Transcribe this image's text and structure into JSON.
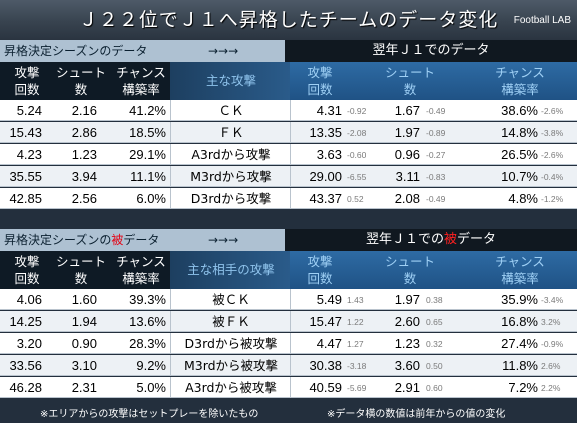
{
  "title": "Ｊ２２位でＪ１へ昇格したチームのデータ変化",
  "brand": "Football LAB",
  "sections": [
    {
      "left_label_pre": "昇格決定シーズンの",
      "left_label_hl": "",
      "left_label_post": "データ",
      "arrow": "→→→",
      "right_label_pre": "翌年Ｊ１での",
      "right_label_hl": "",
      "right_label_post": "データ",
      "headers": {
        "attack": [
          "攻撃",
          "回数"
        ],
        "shoot": [
          "シュート",
          "数"
        ],
        "chance": [
          "チャンス",
          "構築率"
        ],
        "main": "主な攻撃",
        "attack2": [
          "攻撃",
          "回数"
        ],
        "shoot2": [
          "シュート",
          "数"
        ],
        "chance2": [
          "チャンス",
          "構築率"
        ]
      },
      "rows": [
        {
          "a": "5.24",
          "s": "2.16",
          "c": "41.2%",
          "t": "ＣＫ",
          "a2": "4.31",
          "da": "-0.92",
          "s2": "1.67",
          "ds": "-0.49",
          "c2": "38.6%",
          "dc": "-2.6%"
        },
        {
          "a": "15.43",
          "s": "2.86",
          "c": "18.5%",
          "t": "ＦＫ",
          "a2": "13.35",
          "da": "-2.08",
          "s2": "1.97",
          "ds": "-0.89",
          "c2": "14.8%",
          "dc": "-3.8%"
        },
        {
          "a": "4.23",
          "s": "1.23",
          "c": "29.1%",
          "t": "A3rdから攻撃",
          "a2": "3.63",
          "da": "-0.60",
          "s2": "0.96",
          "ds": "-0.27",
          "c2": "26.5%",
          "dc": "-2.6%"
        },
        {
          "a": "35.55",
          "s": "3.94",
          "c": "11.1%",
          "t": "M3rdから攻撃",
          "a2": "29.00",
          "da": "-6.55",
          "s2": "3.11",
          "ds": "-0.83",
          "c2": "10.7%",
          "dc": "-0.4%"
        },
        {
          "a": "42.85",
          "s": "2.56",
          "c": "6.0%",
          "t": "D3rdから攻撃",
          "a2": "43.37",
          "da": "0.52",
          "s2": "2.08",
          "ds": "-0.49",
          "c2": "4.8%",
          "dc": "-1.2%"
        }
      ]
    },
    {
      "left_label_pre": "昇格決定シーズンの",
      "left_label_hl": "被",
      "left_label_post": "データ",
      "arrow": "→→→",
      "right_label_pre": "翌年Ｊ１での",
      "right_label_hl": "被",
      "right_label_post": "データ",
      "headers": {
        "attack": [
          "攻撃",
          "回数"
        ],
        "shoot": [
          "シュート",
          "数"
        ],
        "chance": [
          "チャンス",
          "構築率"
        ],
        "main": "主な相手の攻撃",
        "attack2": [
          "攻撃",
          "回数"
        ],
        "shoot2": [
          "シュート",
          "数"
        ],
        "chance2": [
          "チャンス",
          "構築率"
        ]
      },
      "rows": [
        {
          "a": "4.06",
          "s": "1.60",
          "c": "39.3%",
          "t": "被ＣＫ",
          "a2": "5.49",
          "da": "1.43",
          "s2": "1.97",
          "ds": "0.38",
          "c2": "35.9%",
          "dc": "-3.4%"
        },
        {
          "a": "14.25",
          "s": "1.94",
          "c": "13.6%",
          "t": "被ＦＫ",
          "a2": "15.47",
          "da": "1.22",
          "s2": "2.60",
          "ds": "0.65",
          "c2": "16.8%",
          "dc": "3.2%"
        },
        {
          "a": "3.20",
          "s": "0.90",
          "c": "28.3%",
          "t": "D3rdから被攻撃",
          "a2": "4.47",
          "da": "1.27",
          "s2": "1.23",
          "ds": "0.32",
          "c2": "27.4%",
          "dc": "-0.9%"
        },
        {
          "a": "33.56",
          "s": "3.10",
          "c": "9.2%",
          "t": "M3rdから被攻撃",
          "a2": "30.38",
          "da": "-3.18",
          "s2": "3.60",
          "ds": "0.50",
          "c2": "11.8%",
          "dc": "2.6%"
        },
        {
          "a": "46.28",
          "s": "2.31",
          "c": "5.0%",
          "t": "A3rdから被攻撃",
          "a2": "40.59",
          "da": "-5.69",
          "s2": "2.91",
          "ds": "0.60",
          "c2": "7.2%",
          "dc": "2.2%"
        }
      ]
    }
  ],
  "footnotes": {
    "left": "※エリアからの攻撃はセットプレーを除いたもの",
    "right": "※データ横の数値は前年からの値の変化"
  },
  "colors": {
    "accent_red": "#e50012",
    "header_blue": "#2e6ba4",
    "section_bar": "#aec1d2"
  }
}
